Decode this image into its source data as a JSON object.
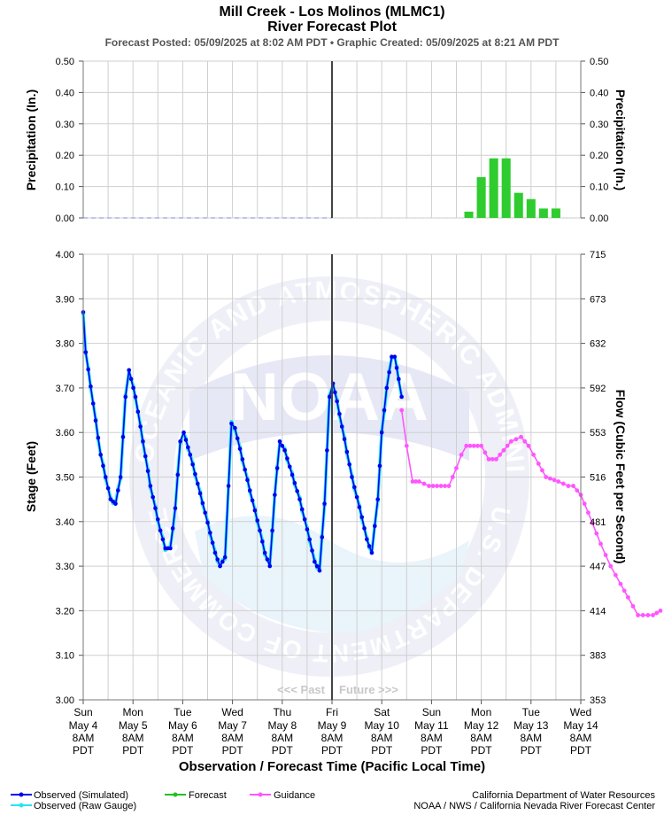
{
  "header": {
    "title": "Mill Creek - Los Molinos (MLMC1)",
    "subtitle": "River Forecast Plot",
    "posted": "Forecast Posted: 05/09/2025 at 8:02 AM PDT  •  Graphic Created: 05/09/2025 at 8:21 AM PDT"
  },
  "labels": {
    "precip_left": "Precipitation (In.)",
    "precip_right": "Precipitation (In.)",
    "stage": "Stage (Feet)",
    "flow": "Flow (Cubic Feet per Second)",
    "xlabel": "Observation / Forecast Time (Pacific Local Time)",
    "past": "<<< Past",
    "future": "Future >>>"
  },
  "legend": [
    {
      "label": "Observed (Simulated)",
      "color": "#0000ee"
    },
    {
      "label": "Observed (Raw Gauge)",
      "color": "#22e5f5"
    },
    {
      "label": "Forecast",
      "color": "#22c022"
    },
    {
      "label": "Guidance",
      "color": "#ff55ff"
    }
  ],
  "credits": {
    "line1": "California Department of Water Resources",
    "line2": "NOAA / NWS / California Nevada River Forecast Center"
  },
  "watermark": {
    "ring_text": "NATIONAL OCEANIC AND ATMOSPHERIC ADMINISTRATION",
    "ring_text2": "U.S. DEPARTMENT OF COMMERCE",
    "logo": "NOAA"
  },
  "chart_data": [
    {
      "type": "bar",
      "name": "precipitation",
      "ylim": [
        0,
        0.5
      ],
      "yticks": [
        "0.00",
        "0.10",
        "0.20",
        "0.30",
        "0.40",
        "0.50"
      ],
      "now_day": 5.0,
      "bars": [
        {
          "day": 7.75,
          "value": 0.02
        },
        {
          "day": 8.0,
          "value": 0.13
        },
        {
          "day": 8.25,
          "value": 0.19
        },
        {
          "day": 8.5,
          "value": 0.19
        },
        {
          "day": 8.75,
          "value": 0.08
        },
        {
          "day": 9.0,
          "value": 0.06
        },
        {
          "day": 9.25,
          "value": 0.03
        },
        {
          "day": 9.5,
          "value": 0.03
        }
      ]
    },
    {
      "type": "line",
      "name": "stage",
      "ylim": [
        3.0,
        4.0
      ],
      "yticks": [
        "3.00",
        "3.10",
        "3.20",
        "3.30",
        "3.40",
        "3.50",
        "3.60",
        "3.70",
        "3.80",
        "3.90",
        "4.00"
      ],
      "flow_ticks": [
        "353",
        "383",
        "414",
        "447",
        "481",
        "516",
        "553",
        "592",
        "632",
        "673",
        "715"
      ],
      "x_ticks": [
        {
          "day": "Sun",
          "date": "May 4",
          "time": "8AM",
          "tz": "PDT"
        },
        {
          "day": "Mon",
          "date": "May 5",
          "time": "8AM",
          "tz": "PDT"
        },
        {
          "day": "Tue",
          "date": "May 6",
          "time": "8AM",
          "tz": "PDT"
        },
        {
          "day": "Wed",
          "date": "May 7",
          "time": "8AM",
          "tz": "PDT"
        },
        {
          "day": "Thu",
          "date": "May 8",
          "time": "8AM",
          "tz": "PDT"
        },
        {
          "day": "Fri",
          "date": "May 9",
          "time": "8AM",
          "tz": "PDT"
        },
        {
          "day": "Sat",
          "date": "May 10",
          "time": "8AM",
          "tz": "PDT"
        },
        {
          "day": "Sun",
          "date": "May 11",
          "time": "8AM",
          "tz": "PDT"
        },
        {
          "day": "Mon",
          "date": "May 12",
          "time": "8AM",
          "tz": "PDT"
        },
        {
          "day": "Tue",
          "date": "May 13",
          "time": "8AM",
          "tz": "PDT"
        },
        {
          "day": "Wed",
          "date": "May 14",
          "time": "8AM",
          "tz": "PDT"
        }
      ],
      "observed_anchors": [
        [
          0.0,
          3.87
        ],
        [
          0.05,
          3.78
        ],
        [
          0.35,
          3.55
        ],
        [
          0.55,
          3.45
        ],
        [
          0.65,
          3.44
        ],
        [
          0.75,
          3.5
        ],
        [
          0.85,
          3.68
        ],
        [
          0.92,
          3.74
        ],
        [
          1.05,
          3.68
        ],
        [
          1.35,
          3.48
        ],
        [
          1.55,
          3.38
        ],
        [
          1.65,
          3.34
        ],
        [
          1.75,
          3.34
        ],
        [
          1.85,
          3.43
        ],
        [
          1.95,
          3.58
        ],
        [
          2.02,
          3.6
        ],
        [
          2.15,
          3.55
        ],
        [
          2.45,
          3.42
        ],
        [
          2.65,
          3.33
        ],
        [
          2.75,
          3.3
        ],
        [
          2.85,
          3.32
        ],
        [
          2.92,
          3.48
        ],
        [
          2.98,
          3.62
        ],
        [
          3.05,
          3.61
        ],
        [
          3.35,
          3.47
        ],
        [
          3.55,
          3.38
        ],
        [
          3.65,
          3.33
        ],
        [
          3.75,
          3.3
        ],
        [
          3.85,
          3.46
        ],
        [
          3.95,
          3.58
        ],
        [
          4.05,
          3.56
        ],
        [
          4.35,
          3.45
        ],
        [
          4.55,
          3.36
        ],
        [
          4.65,
          3.31
        ],
        [
          4.75,
          3.29
        ],
        [
          4.85,
          3.44
        ],
        [
          4.95,
          3.68
        ],
        [
          5.02,
          3.71
        ],
        [
          5.1,
          3.67
        ],
        [
          5.4,
          3.5
        ],
        [
          5.6,
          3.41
        ],
        [
          5.7,
          3.36
        ],
        [
          5.8,
          3.33
        ],
        [
          5.92,
          3.45
        ],
        [
          6.0,
          3.6
        ],
        [
          6.1,
          3.7
        ],
        [
          6.2,
          3.77
        ],
        [
          6.26,
          3.77
        ],
        [
          6.34,
          3.72
        ],
        [
          6.4,
          3.68
        ]
      ],
      "guidance_anchors": [
        [
          6.4,
          3.65
        ],
        [
          6.5,
          3.57
        ],
        [
          6.62,
          3.49
        ],
        [
          6.75,
          3.49
        ],
        [
          6.95,
          3.48
        ],
        [
          7.35,
          3.48
        ],
        [
          7.5,
          3.52
        ],
        [
          7.6,
          3.55
        ],
        [
          7.7,
          3.57
        ],
        [
          8.0,
          3.57
        ],
        [
          8.15,
          3.54
        ],
        [
          8.3,
          3.54
        ],
        [
          8.45,
          3.56
        ],
        [
          8.6,
          3.58
        ],
        [
          8.8,
          3.59
        ],
        [
          8.95,
          3.57
        ],
        [
          9.15,
          3.53
        ],
        [
          9.3,
          3.5
        ],
        [
          9.55,
          3.49
        ],
        [
          9.75,
          3.48
        ],
        [
          9.85,
          3.48
        ],
        [
          10.0,
          3.46
        ],
        [
          10.15,
          3.42
        ],
        [
          10.4,
          3.35
        ],
        [
          10.6,
          3.3
        ],
        [
          10.8,
          3.26
        ],
        [
          10.95,
          3.23
        ],
        [
          11.05,
          3.21
        ],
        [
          11.15,
          3.19
        ],
        [
          11.25,
          3.19
        ],
        [
          11.35,
          3.19
        ],
        [
          11.45,
          3.19
        ],
        [
          11.6,
          3.2
        ]
      ]
    }
  ]
}
